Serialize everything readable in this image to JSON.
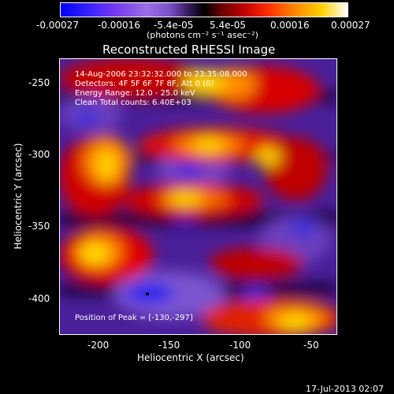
{
  "colorbar": {
    "tick_labels": [
      "-0.00027",
      "-0.00016",
      "-5.4e-05",
      "5.4e-05",
      "0.00016",
      "0.00027"
    ],
    "unit_label": "(photons cm⁻² s⁻¹ asec⁻²)",
    "range": [
      -0.00027,
      0.00027
    ]
  },
  "plot": {
    "title": "Reconstructed RHESSI Image",
    "xlabel": "Heliocentric X (arcsec)",
    "ylabel": "Heliocentric Y (arcsec)",
    "x_ticks": [
      "-200",
      "-150",
      "-100",
      "-50"
    ],
    "y_ticks": [
      "-250",
      "-300",
      "-350",
      "-400"
    ],
    "xlim": [
      -225,
      -30
    ],
    "ylim": [
      -425,
      -235
    ]
  },
  "annotations": {
    "line1": "14-Aug-2006 23:32:32.000 to 23:35:08.000",
    "line2": "Detectors: 4F 5F 6F 7F 8F, Att 0 (0)",
    "line3": "Energy Range: 12.0 - 25.0 keV",
    "line4": "Clean     Total counts: 6.40E+03",
    "peak": "Position of Peak = [-130,-297]"
  },
  "footer": {
    "timestamp": "17-Jul-2013 02:07"
  }
}
